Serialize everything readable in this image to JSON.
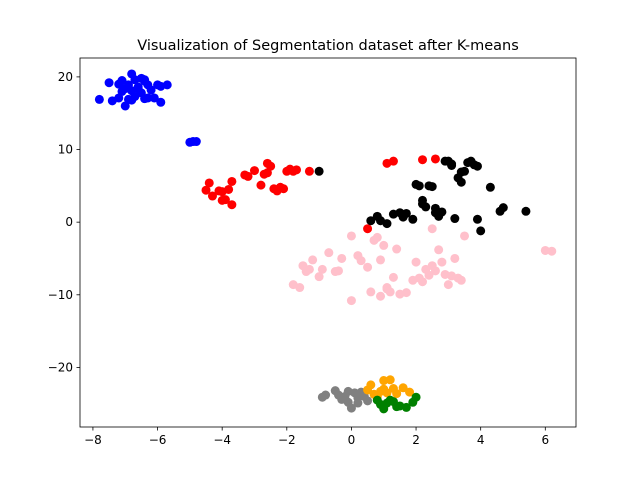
{
  "chart_data": {
    "type": "scatter",
    "title": "Visualization of Segmentation dataset after K-means",
    "xlabel": "",
    "ylabel": "",
    "xlim": [
      -8.4,
      6.95
    ],
    "ylim": [
      -28.2,
      22.6
    ],
    "xticks": [
      -8,
      -6,
      -4,
      -2,
      0,
      2,
      4,
      6
    ],
    "yticks": [
      -20,
      -10,
      0,
      10,
      20
    ],
    "xtick_labels": [
      "−8",
      "−6",
      "−4",
      "−2",
      "0",
      "2",
      "4",
      "6"
    ],
    "ytick_labels": [
      "−20",
      "−10",
      "0",
      "10",
      "20"
    ],
    "grid": false,
    "legend": false,
    "series": [
      {
        "color": "#0000ff",
        "x": [
          -7.5,
          -7.2,
          -7.1,
          -7.0,
          -6.9,
          -6.8,
          -6.7,
          -6.6,
          -6.5,
          -6.4,
          -6.3,
          -6.2,
          -6.0,
          -5.9,
          -5.7,
          -7.8,
          -7.4,
          -7.2,
          -7.0,
          -6.9,
          -6.8,
          -6.7,
          -6.5,
          -6.4,
          -6.3,
          -6.1,
          -5.9,
          -7.1,
          -6.8,
          -6.6,
          -6.4,
          -4.9,
          -4.8,
          -5.0
        ],
        "y": [
          19.2,
          19.0,
          19.5,
          18.4,
          18.9,
          20.4,
          19.6,
          18.6,
          19.8,
          19.6,
          18.9,
          18.2,
          18.9,
          18.7,
          18.9,
          16.9,
          16.7,
          17.1,
          16.0,
          16.9,
          16.8,
          17.3,
          17.8,
          17.0,
          17.1,
          17.1,
          16.5,
          18.0,
          18.1,
          18.4,
          19.4,
          11.1,
          11.1,
          11.0
        ]
      },
      {
        "color": "#ff0000",
        "x": [
          -4.5,
          -4.4,
          -4.3,
          -4.1,
          -4.0,
          -3.9,
          -3.8,
          -3.7,
          -3.7,
          -3.2,
          -3.0,
          -2.8,
          -2.7,
          -2.6,
          -2.5,
          -2.4,
          -2.3,
          -2.2,
          -2.1,
          -2.0,
          -1.9,
          -1.8,
          -1.7,
          -1.3,
          -2.6,
          -3.3,
          -4.0,
          0.5,
          1.1,
          1.3,
          2.2,
          2.6
        ],
        "y": [
          4.4,
          5.4,
          3.6,
          4.3,
          4.2,
          3.1,
          4.5,
          2.4,
          5.6,
          6.3,
          7.1,
          5.1,
          6.6,
          8.1,
          7.7,
          4.6,
          4.3,
          4.8,
          4.6,
          7.0,
          7.3,
          7.0,
          7.2,
          7.0,
          6.8,
          6.5,
          3.0,
          -0.9,
          8.1,
          8.4,
          8.6,
          8.7
        ]
      },
      {
        "color": "#000000",
        "x": [
          -1.0,
          0.6,
          0.8,
          0.9,
          1.1,
          1.3,
          1.5,
          1.7,
          1.9,
          2.0,
          2.1,
          2.2,
          2.3,
          2.4,
          2.5,
          2.6,
          2.7,
          2.8,
          2.9,
          3.0,
          3.1,
          3.2,
          3.3,
          3.4,
          3.5,
          3.6,
          3.7,
          3.8,
          3.9,
          4.0,
          4.3,
          4.6,
          4.7,
          5.4,
          3.1,
          3.4,
          2.2,
          1.6,
          2.6,
          3.9
        ],
        "y": [
          7.0,
          0.2,
          0.8,
          0.2,
          -0.2,
          1.1,
          1.3,
          1.2,
          0.4,
          5.2,
          5.0,
          2.5,
          2.1,
          5.0,
          4.9,
          1.9,
          0.8,
          1.4,
          8.4,
          8.4,
          7.8,
          0.5,
          6.1,
          5.5,
          7.0,
          8.2,
          8.4,
          7.9,
          0.4,
          -1.2,
          4.8,
          1.5,
          2.0,
          1.5,
          8.0,
          6.9,
          3.0,
          0.7,
          1.3,
          7.7
        ]
      },
      {
        "color": "#ffc0cb",
        "x": [
          -1.8,
          -1.6,
          -1.5,
          -1.4,
          -1.3,
          -1.2,
          -1.0,
          -0.9,
          -0.7,
          -0.5,
          -0.4,
          -0.3,
          0.0,
          0.0,
          0.2,
          0.3,
          0.5,
          0.6,
          0.7,
          0.8,
          0.9,
          1.0,
          1.1,
          1.2,
          1.3,
          1.4,
          1.5,
          1.7,
          1.9,
          2.0,
          2.1,
          2.2,
          2.3,
          2.4,
          2.5,
          2.6,
          2.7,
          2.8,
          2.9,
          3.0,
          3.1,
          3.2,
          3.3,
          3.4,
          3.5,
          6.0,
          6.2,
          2.5,
          0.9,
          1.1
        ],
        "y": [
          -8.6,
          -9.0,
          -6.0,
          -6.8,
          -6.5,
          -5.2,
          -7.5,
          -6.5,
          -4.2,
          -6.8,
          -6.7,
          -5.0,
          -1.9,
          -10.8,
          -4.6,
          -5.3,
          -6.2,
          -9.6,
          -2.5,
          -2.1,
          -10.2,
          -3.2,
          -9.0,
          -9.6,
          -7.6,
          -3.7,
          -9.9,
          -9.7,
          -8.0,
          -5.5,
          -7.7,
          -8.2,
          -6.5,
          -7.3,
          -0.9,
          -6.7,
          -3.8,
          -5.5,
          -7.2,
          -8.6,
          -7.4,
          -5.0,
          -7.7,
          -8.0,
          -1.9,
          -3.9,
          -4.0,
          -6.0,
          -5.2,
          -9.2
        ]
      },
      {
        "color": "#808080",
        "x": [
          -0.9,
          -0.8,
          -0.5,
          -0.4,
          -0.3,
          -0.2,
          -0.1,
          0.0,
          0.1,
          0.2,
          0.3,
          0.4,
          0.5,
          -0.1,
          0.2
        ],
        "y": [
          -24.1,
          -23.8,
          -23.2,
          -23.8,
          -24.4,
          -24.0,
          -24.8,
          -25.6,
          -23.5,
          -24.2,
          -23.4,
          -24.0,
          -24.6,
          -23.3,
          -24.9
        ]
      },
      {
        "color": "#ffa500",
        "x": [
          0.5,
          0.6,
          0.7,
          0.9,
          1.0,
          1.1,
          1.2,
          1.3,
          1.4,
          1.6,
          1.8,
          0.8,
          1.0
        ],
        "y": [
          -23.1,
          -22.4,
          -23.7,
          -23.3,
          -21.8,
          -23.5,
          -21.7,
          -22.9,
          -23.6,
          -22.8,
          -23.4,
          -24.0,
          -23.0
        ]
      },
      {
        "color": "#008000",
        "x": [
          0.8,
          0.9,
          1.0,
          1.2,
          1.3,
          1.5,
          1.7,
          1.9,
          2.0,
          1.4,
          1.1
        ],
        "y": [
          -24.5,
          -25.1,
          -25.7,
          -24.5,
          -24.7,
          -25.3,
          -25.5,
          -24.8,
          -24.1,
          -25.4,
          -24.9
        ]
      }
    ]
  }
}
